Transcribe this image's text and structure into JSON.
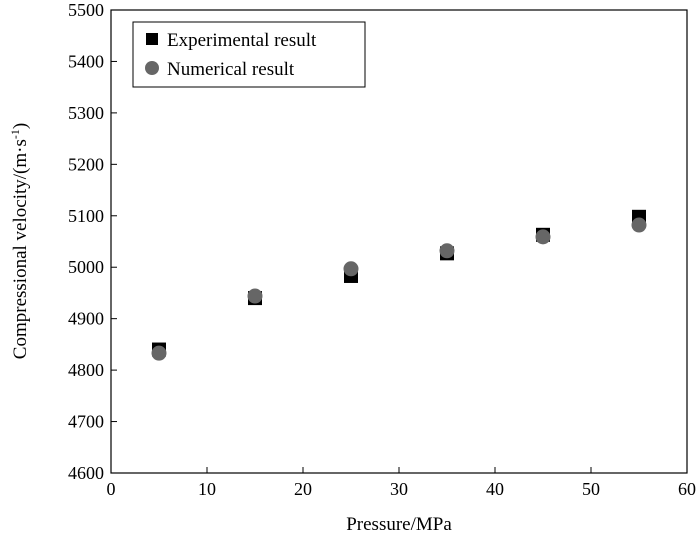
{
  "chart_data": {
    "type": "scatter",
    "title": "",
    "xlabel": "Pressure/MPa",
    "ylabel": "Compressional velocity/(m·s",
    "ylabel_superscript": "-1",
    "ylabel_close": ")",
    "xlim": [
      0,
      60
    ],
    "ylim": [
      4600,
      5500
    ],
    "x_ticks": [
      0,
      10,
      20,
      30,
      40,
      50,
      60
    ],
    "y_ticks": [
      4600,
      4700,
      4800,
      4900,
      5000,
      5100,
      5200,
      5300,
      5400,
      5500
    ],
    "grid": false,
    "legend_position": "top-left",
    "series": [
      {
        "name": "Experimental result",
        "marker": "square",
        "color": "#000000",
        "x": [
          5,
          15,
          25,
          35,
          45,
          55
        ],
        "y": [
          4840,
          4940,
          4983,
          5027,
          5063,
          5098
        ]
      },
      {
        "name": "Numerical result",
        "marker": "circle",
        "color": "#666666",
        "x": [
          5,
          15,
          25,
          35,
          45,
          55
        ],
        "y": [
          4833,
          4944,
          4997,
          5032,
          5059,
          5082
        ]
      }
    ]
  }
}
